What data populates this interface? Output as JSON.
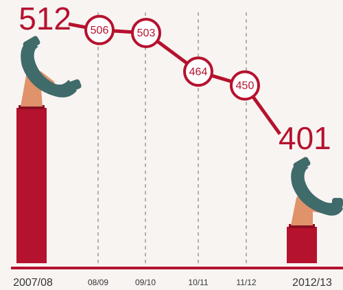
{
  "chart_data": {
    "type": "line",
    "categories": [
      "2007/08",
      "08/09",
      "09/10",
      "10/11",
      "11/12",
      "2012/13"
    ],
    "values": [
      512,
      506,
      503,
      464,
      450,
      401
    ],
    "color": "#b5122e"
  }
}
